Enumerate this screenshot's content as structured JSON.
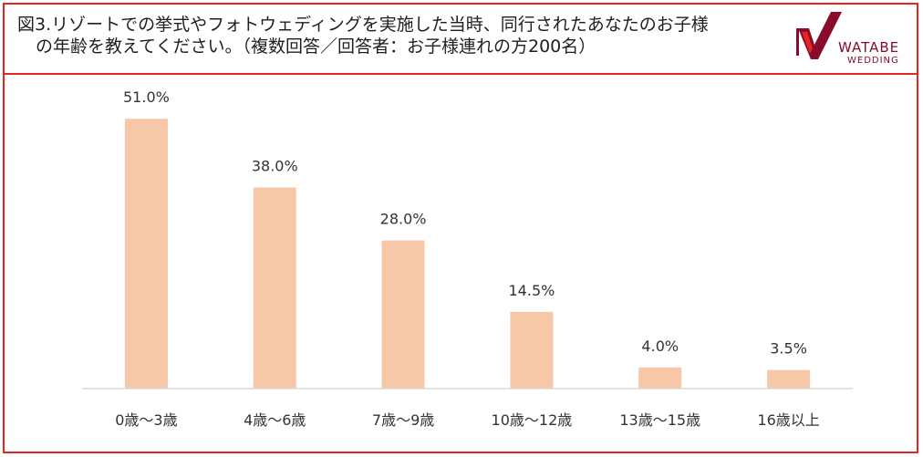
{
  "header": {
    "title_line1": "図3.リゾートでの挙式やフォトウェディングを実施した当時、同行されたあなたのお子様",
    "title_line2": "の年齢を教えてください。（複数回答／回答者：お子様連れの方200名）"
  },
  "logo": {
    "name": "WATABE",
    "sub": "WEDDING",
    "icon": "watabe-check-mark",
    "colors": {
      "primary": "#8b0c2a",
      "accent": "#e5251f"
    }
  },
  "colors": {
    "frame": "#e5251f",
    "bar": "#f6c8a8",
    "axis": "#d9d9d9",
    "text": "#333333"
  },
  "chart_data": {
    "type": "bar",
    "title": "図3.リゾートでの挙式やフォトウェディングを実施した当時、同行されたあなたのお子様の年齢を教えてください。（複数回答／回答者：お子様連れの方200名）",
    "categories": [
      "0歳～3歳",
      "4歳～6歳",
      "7歳～9歳",
      "10歳～12歳",
      "13歳～15歳",
      "16歳以上"
    ],
    "values": [
      51.0,
      38.0,
      28.0,
      14.5,
      4.0,
      3.5
    ],
    "value_labels": [
      "51.0%",
      "38.0%",
      "28.0%",
      "14.5%",
      "4.0%",
      "3.5%"
    ],
    "unit": "%",
    "ylim": [
      0,
      60
    ],
    "grid": false,
    "legend": "none",
    "xlabel": "",
    "ylabel": ""
  }
}
